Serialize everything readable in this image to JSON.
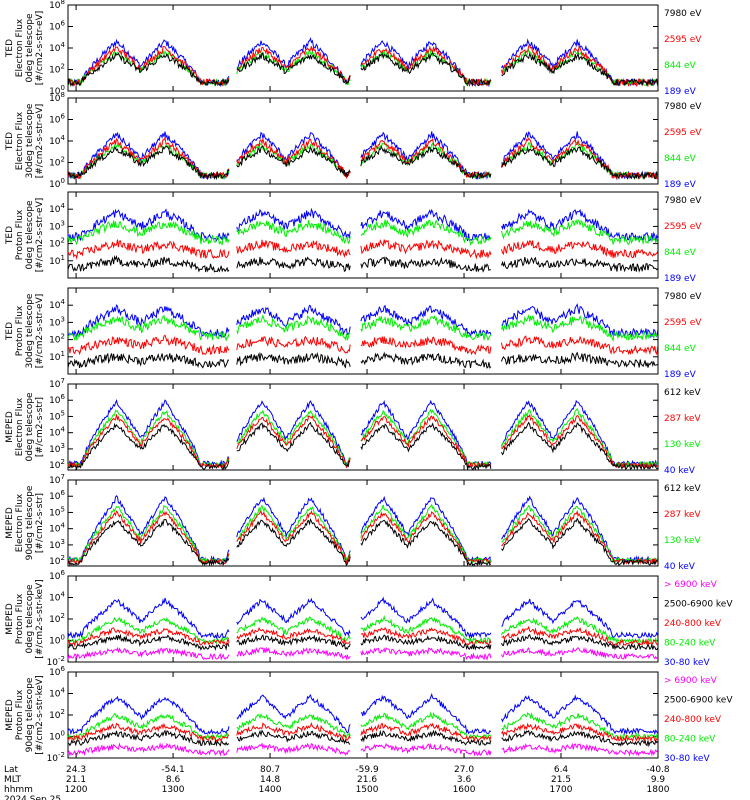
{
  "colors": {
    "black": "#000000",
    "red": "#ff0000",
    "green": "#00ee00",
    "blue": "#0000ff",
    "magenta": "#ff00ff"
  },
  "time_axis": {
    "start_hhmm": 1155,
    "end_hhmm": 1800,
    "ticks": [
      "1200",
      "1300",
      "1400",
      "1500",
      "1600",
      "1700",
      "1800"
    ],
    "lat_values": [
      "24.3",
      "-54.1",
      "80.7",
      "-59.9",
      "27.0",
      "6.4",
      "-40.8"
    ],
    "mlt_values": [
      "21.1",
      "8.6",
      "14.8",
      "21.6",
      "3.6",
      "21.5",
      "9.9"
    ],
    "row_labels": [
      "Lat",
      "MLT",
      "hhmm"
    ],
    "date": "2024 Sep 25"
  },
  "chart_data": [
    {
      "type": "line",
      "panel": "TED electron 0 deg",
      "ylabel_lines": [
        "TED",
        "Electron Flux",
        "0deg telescope",
        "[#/cm2-s-str-eV]"
      ],
      "log_min": 0,
      "log_max": 8,
      "tick_labels": [
        "10^0",
        "10^2",
        "10^4",
        "10^6",
        "10^8"
      ],
      "series": [
        {
          "name": "7980 eV",
          "color": "black"
        },
        {
          "name": "2595 eV",
          "color": "red"
        },
        {
          "name": "844 eV",
          "color": "green"
        },
        {
          "name": "189 eV",
          "color": "blue"
        }
      ]
    },
    {
      "type": "line",
      "panel": "TED electron 30 deg",
      "ylabel_lines": [
        "TED",
        "Electron Flux",
        "30deg telescope",
        "[#/cm2-s-str-eV]"
      ],
      "log_min": 0,
      "log_max": 8,
      "tick_labels": [
        "10^0",
        "10^2",
        "10^4",
        "10^6",
        "10^8"
      ],
      "series": [
        {
          "name": "7980 eV",
          "color": "black"
        },
        {
          "name": "2595 eV",
          "color": "red"
        },
        {
          "name": "844 eV",
          "color": "green"
        },
        {
          "name": "189 eV",
          "color": "blue"
        }
      ]
    },
    {
      "type": "line",
      "panel": "TED proton 0 deg",
      "ylabel_lines": [
        "TED",
        "Proton Flux",
        "0deg telescope",
        "[#/cm2-s-str-eV]"
      ],
      "log_min": 0,
      "log_max": 5,
      "tick_labels": [
        "10^1",
        "10^2",
        "10^3",
        "10^4"
      ],
      "series": [
        {
          "name": "7980 eV",
          "color": "black"
        },
        {
          "name": "2595 eV",
          "color": "red"
        },
        {
          "name": "844 eV",
          "color": "green"
        },
        {
          "name": "189 eV",
          "color": "blue"
        }
      ]
    },
    {
      "type": "line",
      "panel": "TED proton 30 deg",
      "ylabel_lines": [
        "TED",
        "Proton Flux",
        "30deg telescope",
        "[#/cm2-s-str-eV]"
      ],
      "log_min": 0,
      "log_max": 5,
      "tick_labels": [
        "10^1",
        "10^2",
        "10^3",
        "10^4"
      ],
      "series": [
        {
          "name": "7980 eV",
          "color": "black"
        },
        {
          "name": "2595 eV",
          "color": "red"
        },
        {
          "name": "844 eV",
          "color": "green"
        },
        {
          "name": "189 eV",
          "color": "blue"
        }
      ]
    },
    {
      "type": "line",
      "panel": "MEPED electron 0 deg",
      "ylabel_lines": [
        "MEPED",
        "Electron Flux",
        "0deg telescope",
        "[#/cm2-s-str]"
      ],
      "log_min": 1.7,
      "log_max": 7,
      "tick_labels": [
        "10^2",
        "10^3",
        "10^4",
        "10^5",
        "10^6",
        "10^7"
      ],
      "series": [
        {
          "name": "612 keV",
          "color": "black"
        },
        {
          "name": "287 keV",
          "color": "red"
        },
        {
          "name": "130 keV",
          "color": "green"
        },
        {
          "name": "40 keV",
          "color": "blue"
        }
      ]
    },
    {
      "type": "line",
      "panel": "MEPED electron 90 deg",
      "ylabel_lines": [
        "MEPED",
        "Electron Flux",
        "90deg telescope",
        "[#/cm2-s-str]"
      ],
      "log_min": 1.7,
      "log_max": 7,
      "tick_labels": [
        "10^2",
        "10^3",
        "10^4",
        "10^5",
        "10^6",
        "10^7"
      ],
      "series": [
        {
          "name": "612 keV",
          "color": "black"
        },
        {
          "name": "287 keV",
          "color": "red"
        },
        {
          "name": "130 keV",
          "color": "green"
        },
        {
          "name": "40 keV",
          "color": "blue"
        }
      ]
    },
    {
      "type": "line",
      "panel": "MEPED proton 0 deg",
      "ylabel_lines": [
        "MEPED",
        "Proton Flux",
        "0deg telescope",
        "[#/cm2-s-str-keV]"
      ],
      "log_min": -2,
      "log_max": 6,
      "tick_labels": [
        "10^-2",
        "10^0",
        "10^2",
        "10^4",
        "10^6"
      ],
      "series": [
        {
          "name": "> 6900 keV",
          "color": "magenta"
        },
        {
          "name": "2500-6900 keV",
          "color": "black"
        },
        {
          "name": "240-800 keV",
          "color": "red"
        },
        {
          "name": "80-240 keV",
          "color": "green"
        },
        {
          "name": "30-80 keV",
          "color": "blue"
        }
      ]
    },
    {
      "type": "line",
      "panel": "MEPED proton 90 deg",
      "ylabel_lines": [
        "MEPED",
        "Proton Flux",
        "90deg telescope",
        "[#/cm2-s-str-keV]"
      ],
      "log_min": -2,
      "log_max": 6,
      "tick_labels": [
        "10^-2",
        "10^0",
        "10^2",
        "10^4",
        "10^6"
      ],
      "series": [
        {
          "name": "> 6900 keV",
          "color": "magenta"
        },
        {
          "name": "2500-6900 keV",
          "color": "black"
        },
        {
          "name": "240-800 keV",
          "color": "red"
        },
        {
          "name": "80-240 keV",
          "color": "green"
        },
        {
          "name": "30-80 keV",
          "color": "blue"
        }
      ]
    }
  ]
}
